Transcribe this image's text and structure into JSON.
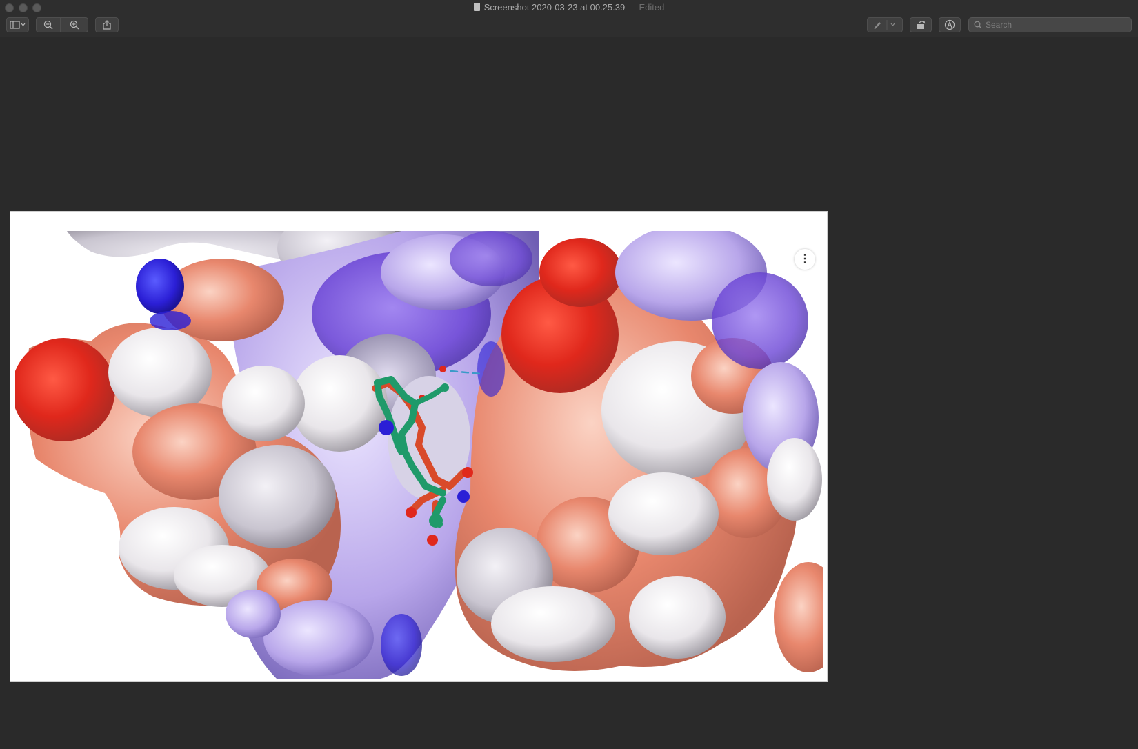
{
  "window": {
    "title": "Screenshot 2020-03-23 at 00.25.39",
    "title_suffix": "— Edited"
  },
  "toolbar": {
    "sidebar_icon": "sidebar-toggle-icon",
    "zoom_out_icon": "zoom-out-icon",
    "zoom_in_icon": "zoom-in-icon",
    "share_icon": "share-icon",
    "markup_pen_icon": "pen-icon",
    "rotate_icon": "rotate-icon",
    "annotate_icon": "markup-icon",
    "search_placeholder": "Search"
  },
  "viewer": {
    "more_button_label": "⋮",
    "colors": {
      "positive": "#2b1fd6",
      "negative": "#e0281c",
      "neutral": "#f2f0f4",
      "ligand_green": "#1f9a6a",
      "ligand_orange": "#d94a2a"
    }
  }
}
